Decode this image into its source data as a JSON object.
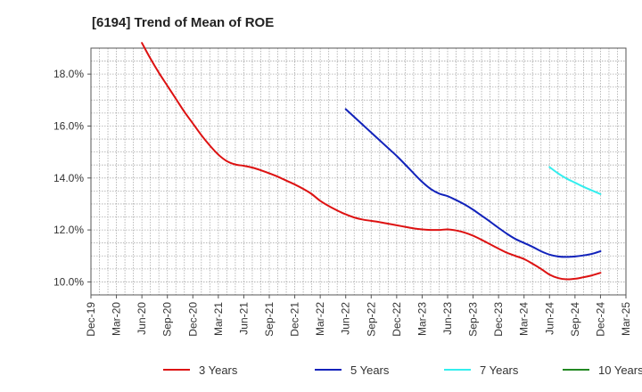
{
  "chart_data": {
    "type": "line",
    "title": "[6194]  Trend of Mean of ROE",
    "xlabel": "",
    "ylabel": "",
    "x_ticks": [
      "Dec-19",
      "Mar-20",
      "Jun-20",
      "Sep-20",
      "Dec-20",
      "Mar-21",
      "Jun-21",
      "Sep-21",
      "Dec-21",
      "Mar-22",
      "Jun-22",
      "Sep-22",
      "Dec-22",
      "Mar-23",
      "Jun-23",
      "Sep-23",
      "Dec-23",
      "Mar-24",
      "Jun-24",
      "Sep-24",
      "Dec-24",
      "Mar-25"
    ],
    "y_ticks": [
      "10.0%",
      "12.0%",
      "14.0%",
      "16.0%",
      "18.0%"
    ],
    "y_tick_values": [
      10,
      12,
      14,
      16,
      18
    ],
    "ylim": [
      9.5,
      19.0
    ],
    "xlim": [
      "Dec-19",
      "Mar-25"
    ],
    "grid": true,
    "legend_position": "bottom",
    "series": [
      {
        "name": "3 Years",
        "color": "#dd1111",
        "x": [
          "Jun-20",
          "Jul-20",
          "Aug-20",
          "Sep-20",
          "Oct-20",
          "Nov-20",
          "Dec-20",
          "Jan-21",
          "Feb-21",
          "Mar-21",
          "Apr-21",
          "May-21",
          "Jun-21",
          "Jul-21",
          "Aug-21",
          "Sep-21",
          "Oct-21",
          "Nov-21",
          "Dec-21",
          "Jan-22",
          "Feb-22",
          "Mar-22",
          "Apr-22",
          "May-22",
          "Jun-22",
          "Jul-22",
          "Aug-22",
          "Sep-22",
          "Oct-22",
          "Nov-22",
          "Dec-22",
          "Jan-23",
          "Feb-23",
          "Mar-23",
          "Apr-23",
          "May-23",
          "Jun-23",
          "Jul-23",
          "Aug-23",
          "Sep-23",
          "Oct-23",
          "Nov-23",
          "Dec-23",
          "Jan-24",
          "Feb-24",
          "Mar-24",
          "Apr-24",
          "May-24",
          "Jun-24",
          "Jul-24",
          "Aug-24",
          "Sep-24",
          "Oct-24",
          "Nov-24",
          "Dec-24"
        ],
        "values": [
          19.2,
          18.6,
          18.05,
          17.55,
          17.05,
          16.55,
          16.1,
          15.65,
          15.25,
          14.9,
          14.65,
          14.52,
          14.47,
          14.4,
          14.3,
          14.18,
          14.05,
          13.9,
          13.75,
          13.58,
          13.38,
          13.12,
          12.92,
          12.75,
          12.6,
          12.48,
          12.4,
          12.35,
          12.3,
          12.24,
          12.18,
          12.12,
          12.06,
          12.02,
          12.0,
          12.0,
          12.02,
          11.98,
          11.9,
          11.78,
          11.62,
          11.45,
          11.28,
          11.12,
          11.0,
          10.88,
          10.7,
          10.5,
          10.28,
          10.15,
          10.1,
          10.12,
          10.18,
          10.25,
          10.35
        ]
      },
      {
        "name": "5 Years",
        "color": "#1122bb",
        "x": [
          "Jun-22",
          "Jul-22",
          "Aug-22",
          "Sep-22",
          "Oct-22",
          "Nov-22",
          "Dec-22",
          "Jan-23",
          "Feb-23",
          "Mar-23",
          "Apr-23",
          "May-23",
          "Jun-23",
          "Jul-23",
          "Aug-23",
          "Sep-23",
          "Oct-23",
          "Nov-23",
          "Dec-23",
          "Jan-24",
          "Feb-24",
          "Mar-24",
          "Apr-24",
          "May-24",
          "Jun-24",
          "Jul-24",
          "Aug-24",
          "Sep-24",
          "Oct-24",
          "Nov-24",
          "Dec-24"
        ],
        "values": [
          16.65,
          16.35,
          16.05,
          15.75,
          15.45,
          15.15,
          14.85,
          14.52,
          14.18,
          13.85,
          13.58,
          13.4,
          13.3,
          13.15,
          12.98,
          12.78,
          12.55,
          12.32,
          12.08,
          11.85,
          11.65,
          11.5,
          11.35,
          11.18,
          11.05,
          10.98,
          10.96,
          10.98,
          11.02,
          11.08,
          11.18
        ]
      },
      {
        "name": "7 Years",
        "color": "#33eeee",
        "x": [
          "Jun-24",
          "Jul-24",
          "Aug-24",
          "Sep-24",
          "Oct-24",
          "Nov-24",
          "Dec-24"
        ],
        "values": [
          14.42,
          14.18,
          13.98,
          13.82,
          13.66,
          13.52,
          13.38
        ]
      },
      {
        "name": "10 Years",
        "color": "#228822",
        "x": [],
        "values": []
      }
    ]
  }
}
